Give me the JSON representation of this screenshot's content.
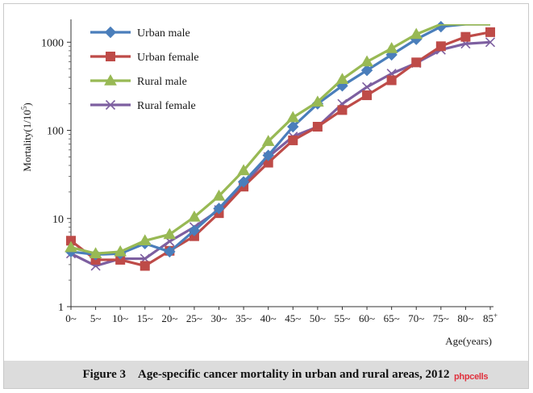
{
  "chart_data": {
    "type": "line",
    "categories": [
      "0~",
      "5~",
      "10~",
      "15~",
      "20~",
      "25~",
      "30~",
      "35~",
      "40~",
      "45~",
      "50~",
      "55~",
      "60~",
      "65~",
      "70~",
      "75~",
      "80~",
      "85~"
    ],
    "last_category_base": "85",
    "last_category_sup": "+",
    "xlabel": "Age(years)",
    "ylabel": "Mortality(1/10⁵)",
    "ylabel_main": "Mortality(1/10",
    "ylabel_sup": "5",
    "ylabel_tail": ")",
    "yscale": "log",
    "ylim": [
      1,
      1600
    ],
    "yticks": [
      1,
      10,
      100,
      1000
    ],
    "grid": false,
    "legend_position": "top-left",
    "series": [
      {
        "name": "Urban male",
        "color": "#4a7ebb",
        "marker": "diamond",
        "values": [
          4.2,
          3.9,
          4.0,
          5.2,
          4.2,
          7.3,
          13,
          26,
          52,
          110,
          200,
          320,
          480,
          720,
          1080,
          1500,
          1600,
          1600
        ]
      },
      {
        "name": "Urban female",
        "color": "#be4b48",
        "marker": "square",
        "values": [
          5.6,
          3.4,
          3.4,
          2.9,
          4.3,
          6.3,
          11.5,
          23,
          43,
          77,
          110,
          170,
          250,
          370,
          590,
          900,
          1150,
          1300
        ]
      },
      {
        "name": "Rural male",
        "color": "#98b954",
        "marker": "triangle",
        "values": [
          4.7,
          4.0,
          4.2,
          5.6,
          6.6,
          10.4,
          18,
          35,
          75,
          140,
          210,
          380,
          600,
          850,
          1230,
          1600,
          1600,
          1600
        ]
      },
      {
        "name": "Rural female",
        "color": "#7d5fa0",
        "marker": "x",
        "values": [
          4.0,
          2.9,
          3.5,
          3.5,
          5.5,
          8.0,
          12.5,
          24,
          50,
          85,
          110,
          200,
          310,
          440,
          580,
          820,
          960,
          1000
        ]
      }
    ]
  },
  "caption": "Figure 3 Age-specific cancer mortality in urban and rural areas, 2012",
  "watermark": "phpcells"
}
